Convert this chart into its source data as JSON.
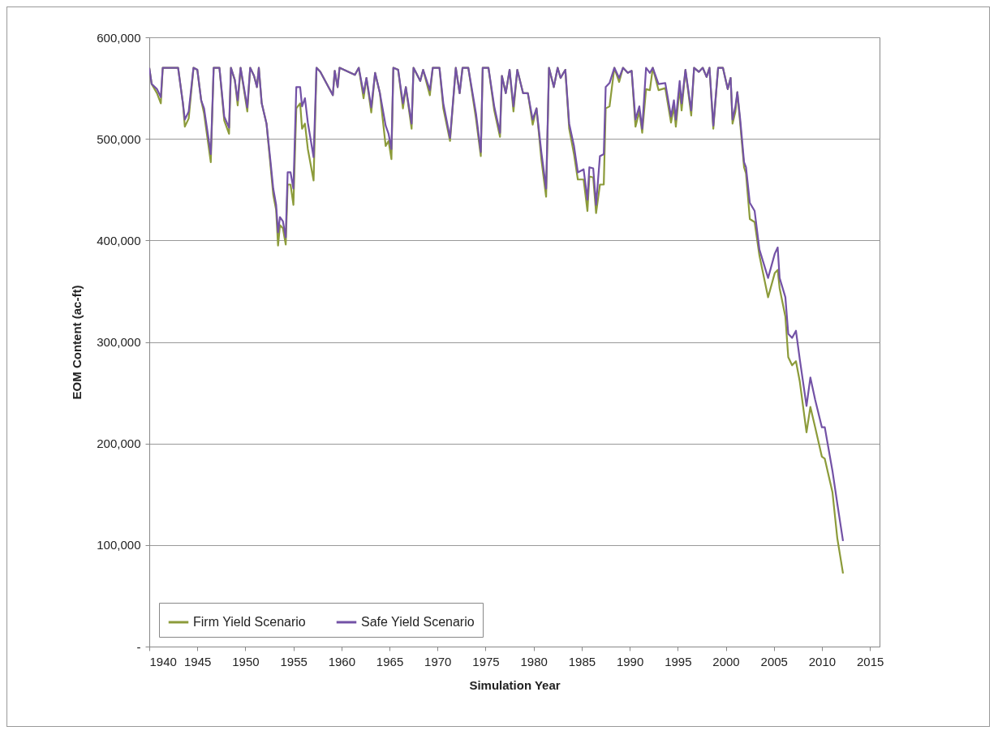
{
  "chart_data": {
    "type": "line",
    "xlabel": "Simulation Year",
    "ylabel": "EOM Content (ac-ft)",
    "x": [
      1940,
      1940.25,
      1940.8,
      1941.2,
      1941.4,
      1943.0,
      1943.5,
      1943.7,
      1944.1,
      1944.6,
      1945.0,
      1945.4,
      1945.7,
      1946.4,
      1946.7,
      1947.3,
      1947.8,
      1948.3,
      1948.5,
      1948.9,
      1949.2,
      1949.5,
      1950.2,
      1950.5,
      1950.9,
      1951.2,
      1951.4,
      1951.7,
      1952.2,
      1952.6,
      1952.9,
      1953.2,
      1953.4,
      1953.6,
      1953.9,
      1954.2,
      1954.4,
      1954.7,
      1955.0,
      1955.3,
      1955.7,
      1955.9,
      1956.2,
      1956.5,
      1957.1,
      1957.4,
      1957.8,
      1959.1,
      1959.3,
      1959.6,
      1959.8,
      1961.4,
      1961.8,
      1962.3,
      1962.6,
      1963.1,
      1963.5,
      1964.0,
      1964.6,
      1964.9,
      1965.2,
      1965.4,
      1965.9,
      1966.4,
      1966.7,
      1967.3,
      1967.5,
      1968.2,
      1968.5,
      1969.2,
      1969.5,
      1970.2,
      1970.6,
      1971.3,
      1971.9,
      1972.3,
      1972.6,
      1973.2,
      1974.0,
      1974.5,
      1974.7,
      1975.3,
      1975.9,
      1976.5,
      1976.7,
      1977.1,
      1977.5,
      1977.9,
      1978.3,
      1978.9,
      1979.4,
      1979.9,
      1980.3,
      1980.8,
      1981.3,
      1981.6,
      1982.1,
      1982.5,
      1982.8,
      1983.3,
      1983.7,
      1984.2,
      1984.6,
      1985.2,
      1985.6,
      1985.8,
      1986.2,
      1986.5,
      1986.9,
      1987.3,
      1987.5,
      1987.9,
      1988.4,
      1988.9,
      1989.3,
      1989.8,
      1990.2,
      1990.6,
      1991.0,
      1991.3,
      1991.7,
      1992.1,
      1992.4,
      1993.0,
      1993.7,
      1994.3,
      1994.6,
      1994.8,
      1995.2,
      1995.4,
      1995.8,
      1996.4,
      1996.7,
      1997.2,
      1997.6,
      1998.0,
      1998.3,
      1998.7,
      1999.2,
      1999.7,
      2000.2,
      2000.5,
      2000.7,
      2001.0,
      2001.2,
      2001.5,
      2001.9,
      2002.1,
      2002.5,
      2003.0,
      2003.5,
      2004.4,
      2005.1,
      2005.4,
      2005.6,
      2006.2,
      2006.5,
      2006.9,
      2007.3,
      2007.7,
      2008.4,
      2008.8,
      2009.3,
      2010.0,
      2010.3,
      2011.1,
      2011.6,
      2012.2
    ],
    "series": [
      {
        "name": "Firm Yield Scenario",
        "color": "#8c9b3a",
        "values": [
          570000,
          554000,
          545000,
          535000,
          570000,
          570000,
          535000,
          512000,
          520000,
          570000,
          568000,
          538000,
          525000,
          477000,
          570000,
          570000,
          518000,
          505000,
          570000,
          558000,
          533000,
          570000,
          527000,
          570000,
          562000,
          551000,
          570000,
          535000,
          515000,
          475000,
          445000,
          430000,
          395000,
          415000,
          412000,
          396000,
          455000,
          455000,
          435000,
          530000,
          535000,
          510000,
          515000,
          490000,
          459000,
          570000,
          566000,
          543000,
          567000,
          551000,
          570000,
          563000,
          570000,
          540000,
          560000,
          526000,
          565000,
          545000,
          493000,
          498000,
          480000,
          570000,
          568000,
          530000,
          551000,
          510000,
          570000,
          557000,
          568000,
          543000,
          570000,
          570000,
          530000,
          498000,
          570000,
          545000,
          570000,
          570000,
          520000,
          483000,
          570000,
          570000,
          528000,
          502000,
          562000,
          545000,
          568000,
          527000,
          568000,
          545000,
          545000,
          514000,
          530000,
          480000,
          443000,
          570000,
          551000,
          570000,
          560000,
          568000,
          510000,
          485000,
          460000,
          460000,
          429000,
          463000,
          462000,
          427000,
          455000,
          455000,
          530000,
          532000,
          570000,
          556000,
          570000,
          565000,
          567000,
          512000,
          527000,
          506000,
          549000,
          548000,
          570000,
          548000,
          550000,
          516000,
          532000,
          512000,
          550000,
          528000,
          568000,
          523000,
          570000,
          566000,
          570000,
          561000,
          570000,
          510000,
          570000,
          570000,
          549000,
          560000,
          515000,
          527000,
          546000,
          515000,
          472000,
          466000,
          421000,
          418000,
          385000,
          344000,
          368000,
          371000,
          353000,
          325000,
          285000,
          277000,
          281000,
          261000,
          211000,
          236000,
          216000,
          187000,
          185000,
          152000,
          107000,
          72000
        ]
      },
      {
        "name": "Safe Yield Scenario",
        "color": "#7352a6",
        "values": [
          570000,
          554000,
          549000,
          541000,
          570000,
          570000,
          535000,
          519000,
          527000,
          570000,
          568000,
          538000,
          530000,
          485000,
          570000,
          570000,
          522000,
          511000,
          570000,
          558000,
          538000,
          570000,
          531000,
          570000,
          562000,
          551000,
          570000,
          535000,
          515000,
          479000,
          451000,
          435000,
          408000,
          423000,
          419000,
          403000,
          467000,
          467000,
          451000,
          551000,
          551000,
          532000,
          540000,
          516000,
          482000,
          570000,
          566000,
          543000,
          567000,
          551000,
          570000,
          563000,
          570000,
          545000,
          560000,
          531000,
          565000,
          545000,
          513000,
          505000,
          490000,
          570000,
          568000,
          535000,
          551000,
          515000,
          570000,
          557000,
          568000,
          548000,
          570000,
          570000,
          535000,
          501000,
          570000,
          545000,
          570000,
          570000,
          525000,
          487000,
          570000,
          570000,
          532000,
          506000,
          562000,
          545000,
          568000,
          532000,
          568000,
          545000,
          545000,
          519000,
          530000,
          487000,
          451000,
          570000,
          551000,
          570000,
          560000,
          568000,
          515000,
          493000,
          467000,
          470000,
          440000,
          472000,
          471000,
          435000,
          483000,
          485000,
          551000,
          555000,
          570000,
          560000,
          570000,
          565000,
          567000,
          519000,
          532000,
          510000,
          570000,
          565000,
          570000,
          554000,
          555000,
          522000,
          538000,
          519000,
          557000,
          535000,
          568000,
          528000,
          570000,
          566000,
          570000,
          561000,
          570000,
          513000,
          570000,
          570000,
          549000,
          560000,
          519000,
          532000,
          546000,
          519000,
          477000,
          472000,
          437000,
          429000,
          391000,
          363000,
          387000,
          393000,
          363000,
          344000,
          308000,
          304000,
          311000,
          283000,
          237000,
          265000,
          243000,
          216000,
          216000,
          173000,
          141000,
          104000
        ]
      }
    ],
    "xlim": [
      1940,
      2016
    ],
    "xticks": [
      1940,
      1945,
      1950,
      1955,
      1960,
      1965,
      1970,
      1975,
      1980,
      1985,
      1990,
      1995,
      2000,
      2005,
      2010,
      2015
    ],
    "ylim": [
      0,
      600000
    ],
    "yticks": [
      {
        "value": 0,
        "label": "-"
      },
      {
        "value": 100000,
        "label": "100,000"
      },
      {
        "value": 200000,
        "label": "200,000"
      },
      {
        "value": 300000,
        "label": "300,000"
      },
      {
        "value": 400000,
        "label": "400,000"
      },
      {
        "value": 500000,
        "label": "500,000"
      },
      {
        "value": 600000,
        "label": "600,000"
      }
    ],
    "grid": "y",
    "legend": "bottom left"
  }
}
